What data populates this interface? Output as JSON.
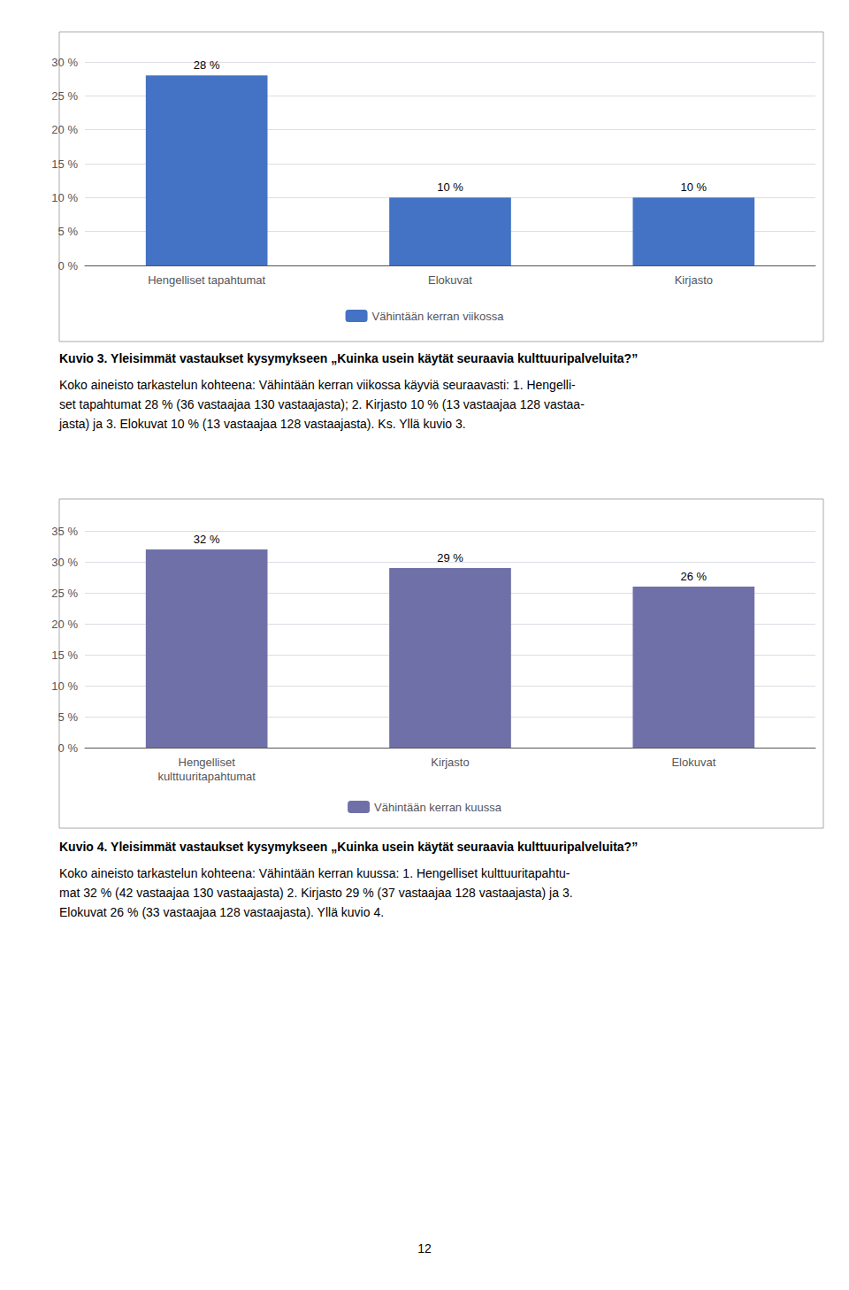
{
  "chart_data": [
    {
      "type": "bar",
      "title": "Kuvio 3. Yleisimmät vastaukset kysymykseen „Kuinka usein käytät seuraavia kulttuuripalveluita?”",
      "subtitle": "Koko aineisto tarkastelun kohteena: Vähintään kerran viikossa käyviä seuraavasti: 1. Hengelli-\nset tapahtumat 28 % (36 vastaajaa 130 vastaajasta); 2. Kirjasto 10 % (13 vastaajaa 128 vastaa-\njasta) ja 3. Elokuvat 10 % (13 vastaajaa 128 vastaajasta). Ks. Yllä kuvio 3.",
      "categories": [
        "Hengelliset tapahtumat",
        "Elokuvat",
        "Kirjasto"
      ],
      "series": [
        {
          "name": "Vähintään kerran viikossa",
          "color": "#4472C4",
          "values": [
            28,
            10,
            10
          ],
          "value_labels": [
            "28 %",
            "10 %",
            "10 %"
          ]
        }
      ],
      "ylim": [
        0,
        30
      ],
      "yticks": [
        {
          "value": 0,
          "label": "0 %"
        },
        {
          "value": 5,
          "label": "5 %"
        },
        {
          "value": 10,
          "label": "10 %"
        },
        {
          "value": 15,
          "label": "15 %"
        },
        {
          "value": 20,
          "label": "20 %"
        },
        {
          "value": 25,
          "label": "25 %"
        },
        {
          "value": 30,
          "label": "30 %"
        }
      ],
      "grid": true,
      "legend": "bottom",
      "data_labels": true
    },
    {
      "type": "bar",
      "title": "Kuvio 4. Yleisimmät vastaukset kysymykseen „Kuinka usein käytät seuraavia kulttuuripalveluita?”",
      "subtitle": "Koko aineisto tarkastelun kohteena: Vähintään kerran kuussa: 1. Hengelliset kulttuuritapahtu-\nmat 32 % (42 vastaajaa 130 vastaajasta) 2. Kirjasto 29 % (37 vastaajaa 128 vastaajasta) ja 3.\nElokuvat 26 % (33 vastaajaa 128 vastaajasta). Yllä kuvio 4.",
      "categories": [
        "Hengelliset\nkulttuuritapahtumat",
        "Kirjasto",
        "Elokuvat"
      ],
      "series": [
        {
          "name": "Vähintään kerran kuussa",
          "color": "#7070A8",
          "values": [
            32,
            29,
            26
          ],
          "value_labels": [
            "32 %",
            "29 %",
            "26 %"
          ]
        }
      ],
      "ylim": [
        0,
        35
      ],
      "yticks": [
        {
          "value": 0,
          "label": "0 %"
        },
        {
          "value": 5,
          "label": "5 %"
        },
        {
          "value": 10,
          "label": "10 %"
        },
        {
          "value": 15,
          "label": "15 %"
        },
        {
          "value": 20,
          "label": "20 %"
        },
        {
          "value": 25,
          "label": "25 %"
        },
        {
          "value": 30,
          "label": "30 %"
        },
        {
          "value": 35,
          "label": "35 %"
        }
      ],
      "grid": true,
      "legend": "bottom",
      "data_labels": true,
      "annotations": [
        "12"
      ]
    }
  ]
}
